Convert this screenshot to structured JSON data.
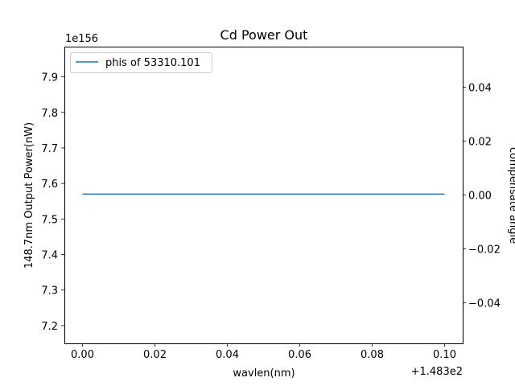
{
  "chart_data": {
    "type": "line",
    "title": "Cd Power Out",
    "xlabel": "wavlen(nm)",
    "ylabel": "148.7nm Output Power(nW)",
    "y2label": "compensate angle",
    "x_offset_text": "+1.483e2",
    "y_scale_text": "1e156",
    "xlim": [
      -0.005,
      0.105
    ],
    "ylim": [
      7.15,
      7.985
    ],
    "y2lim": [
      -0.055,
      0.055
    ],
    "x_ticks": [
      0.0,
      0.02,
      0.04,
      0.06,
      0.08,
      0.1
    ],
    "x_tick_labels": [
      "0.00",
      "0.02",
      "0.04",
      "0.06",
      "0.08",
      "0.10"
    ],
    "y_ticks": [
      7.2,
      7.3,
      7.4,
      7.5,
      7.6,
      7.7,
      7.8,
      7.9
    ],
    "y_tick_labels": [
      "7.2",
      "7.3",
      "7.4",
      "7.5",
      "7.6",
      "7.7",
      "7.8",
      "7.9"
    ],
    "y2_ticks": [
      -0.04,
      -0.02,
      0.0,
      0.02,
      0.04
    ],
    "y2_tick_labels": [
      "−0.04",
      "−0.02",
      "0.00",
      "0.02",
      "0.04"
    ],
    "grid": false,
    "legend_position": "top-left",
    "series": [
      {
        "name": "phis of 53310.101",
        "color": "#1f77b4",
        "x": [
          0.0,
          0.1
        ],
        "y": [
          7.57,
          7.57
        ]
      }
    ]
  }
}
